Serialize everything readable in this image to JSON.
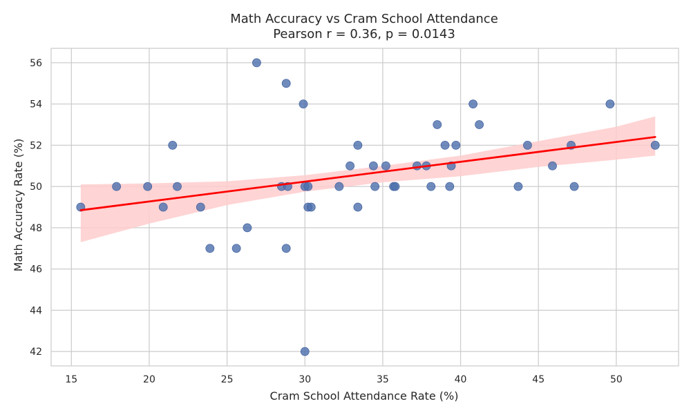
{
  "chart_data": {
    "type": "scatter",
    "title": "Math Accuracy vs Cram School Attendance",
    "subtitle": "Pearson r = 0.36, p = 0.0143",
    "xlabel": "Cram School Attendance Rate (%)",
    "ylabel": "Math Accuracy Rate (%)",
    "xlim": [
      13.7,
      54.0
    ],
    "ylim": [
      41.3,
      56.7
    ],
    "xticks": [
      15,
      20,
      25,
      30,
      35,
      40,
      45,
      50
    ],
    "yticks": [
      42,
      44,
      46,
      48,
      50,
      52,
      54,
      56
    ],
    "grid": true,
    "colors": {
      "points": "#4c6fad",
      "regression_line": "#ff0000",
      "confidence_band": "#ffcccc",
      "grid": "#cccccc",
      "axes": "#cccccc"
    },
    "points": [
      {
        "x": 15.6,
        "y": 49
      },
      {
        "x": 17.9,
        "y": 50
      },
      {
        "x": 19.9,
        "y": 50
      },
      {
        "x": 20.9,
        "y": 49
      },
      {
        "x": 21.5,
        "y": 52
      },
      {
        "x": 21.8,
        "y": 50
      },
      {
        "x": 23.3,
        "y": 49
      },
      {
        "x": 23.9,
        "y": 47
      },
      {
        "x": 25.6,
        "y": 47
      },
      {
        "x": 26.3,
        "y": 48
      },
      {
        "x": 26.9,
        "y": 56
      },
      {
        "x": 28.5,
        "y": 50
      },
      {
        "x": 28.8,
        "y": 55
      },
      {
        "x": 28.8,
        "y": 47
      },
      {
        "x": 28.9,
        "y": 50
      },
      {
        "x": 29.9,
        "y": 54
      },
      {
        "x": 30.0,
        "y": 50
      },
      {
        "x": 30.0,
        "y": 42
      },
      {
        "x": 30.2,
        "y": 50
      },
      {
        "x": 30.2,
        "y": 49
      },
      {
        "x": 30.4,
        "y": 49
      },
      {
        "x": 32.2,
        "y": 50
      },
      {
        "x": 32.9,
        "y": 51
      },
      {
        "x": 33.4,
        "y": 52
      },
      {
        "x": 33.4,
        "y": 49
      },
      {
        "x": 34.4,
        "y": 51
      },
      {
        "x": 34.5,
        "y": 50
      },
      {
        "x": 35.2,
        "y": 51
      },
      {
        "x": 35.7,
        "y": 50
      },
      {
        "x": 35.8,
        "y": 50
      },
      {
        "x": 37.2,
        "y": 51
      },
      {
        "x": 37.8,
        "y": 51
      },
      {
        "x": 38.1,
        "y": 50
      },
      {
        "x": 38.5,
        "y": 53
      },
      {
        "x": 39.0,
        "y": 52
      },
      {
        "x": 39.3,
        "y": 50
      },
      {
        "x": 39.4,
        "y": 51
      },
      {
        "x": 39.7,
        "y": 52
      },
      {
        "x": 40.8,
        "y": 54
      },
      {
        "x": 41.2,
        "y": 53
      },
      {
        "x": 43.7,
        "y": 50
      },
      {
        "x": 44.3,
        "y": 52
      },
      {
        "x": 45.9,
        "y": 51
      },
      {
        "x": 47.1,
        "y": 52
      },
      {
        "x": 47.3,
        "y": 50
      },
      {
        "x": 49.6,
        "y": 54
      },
      {
        "x": 52.5,
        "y": 52
      }
    ],
    "regression_line": {
      "x": [
        15.6,
        52.5
      ],
      "y": [
        48.85,
        52.4
      ]
    },
    "confidence_band": {
      "x": [
        15.6,
        20,
        25,
        30,
        35,
        40,
        45,
        50,
        52.5
      ],
      "lower": [
        47.3,
        48.2,
        49.1,
        49.75,
        50.2,
        50.5,
        50.95,
        51.3,
        51.5
      ],
      "upper": [
        50.1,
        50.15,
        50.25,
        50.55,
        51.0,
        51.5,
        52.2,
        52.9,
        53.4
      ]
    }
  }
}
